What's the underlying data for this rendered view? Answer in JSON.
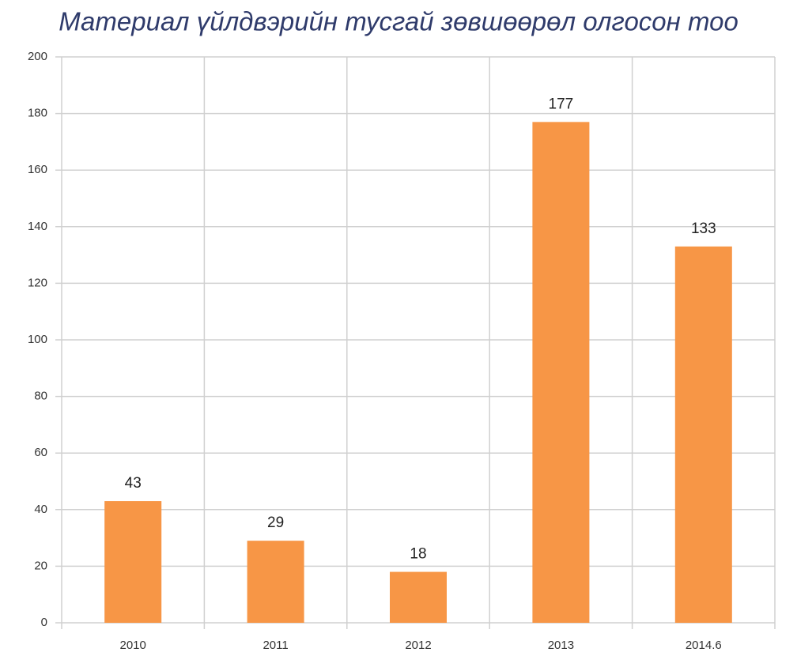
{
  "chart_data": {
    "type": "bar",
    "title": "Материал үйлдвэрийн тусгай зөвшөөрөл олгосон тоо",
    "categories": [
      "2010",
      "2011",
      "2012",
      "2013",
      "2014.6"
    ],
    "values": [
      43,
      29,
      18,
      177,
      133
    ],
    "color": "#f79646",
    "ylim": [
      0,
      200
    ],
    "yticks": [
      0,
      20,
      40,
      60,
      80,
      100,
      120,
      140,
      160,
      180,
      200
    ],
    "grid": true
  }
}
